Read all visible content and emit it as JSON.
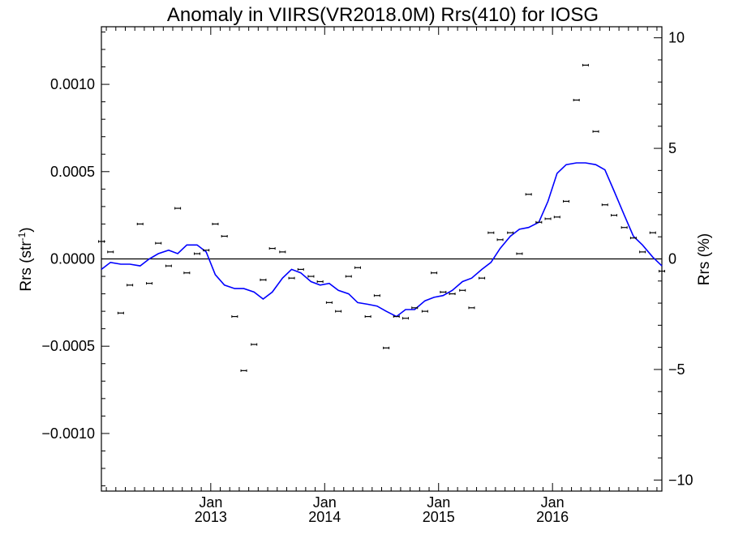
{
  "chart_data": {
    "type": "scatter",
    "title": "Anomaly in VIIRS(VR2018.0M) Rrs(410) for IOSG",
    "ylabel_left": "Rrs (str",
    "ylabel_left_sup": "-1",
    "ylabel_left_end": ")",
    "ylabel_right": "Rrs (%)",
    "x_ticks": [
      {
        "x": 2013.0,
        "month": "Jan",
        "year": "2013"
      },
      {
        "x": 2014.0,
        "month": "Jan",
        "year": "2014"
      },
      {
        "x": 2015.0,
        "month": "Jan",
        "year": "2015"
      },
      {
        "x": 2016.0,
        "month": "Jan",
        "year": "2016"
      }
    ],
    "xlim": [
      2012.04,
      2016.96
    ],
    "ylim_left": [
      -0.00133,
      0.00133
    ],
    "ylim_right": [
      -10.5,
      10.5
    ],
    "y_ticks_left": [
      {
        "v": 0.001,
        "label": "0.0010"
      },
      {
        "v": 0.0005,
        "label": "0.0005"
      },
      {
        "v": 0.0,
        "label": "0.0000"
      },
      {
        "v": -0.0005,
        "label": "−0.0005"
      },
      {
        "v": -0.001,
        "label": "−0.0010"
      }
    ],
    "y_ticks_right": [
      {
        "v": 10,
        "label": "10"
      },
      {
        "v": 5,
        "label": "5"
      },
      {
        "v": 0,
        "label": "0"
      },
      {
        "v": -5,
        "label": "−5"
      },
      {
        "v": -10,
        "label": "−10"
      }
    ],
    "series": [
      {
        "kind": "points",
        "color": "#000000",
        "points": [
          {
            "x": 2012.04,
            "y": 0.0001
          },
          {
            "x": 2012.12,
            "y": 4e-05
          },
          {
            "x": 2012.21,
            "y": -0.00031
          },
          {
            "x": 2012.29,
            "y": -0.00015
          },
          {
            "x": 2012.38,
            "y": 0.0002
          },
          {
            "x": 2012.46,
            "y": -0.00014
          },
          {
            "x": 2012.54,
            "y": 9e-05
          },
          {
            "x": 2012.63,
            "y": -4e-05
          },
          {
            "x": 2012.71,
            "y": 0.00029
          },
          {
            "x": 2012.79,
            "y": -8e-05
          },
          {
            "x": 2012.88,
            "y": 3e-05
          },
          {
            "x": 2012.96,
            "y": 5e-05
          },
          {
            "x": 2013.04,
            "y": 0.0002
          },
          {
            "x": 2013.12,
            "y": 0.00013
          },
          {
            "x": 2013.21,
            "y": -0.00033
          },
          {
            "x": 2013.29,
            "y": -0.00064
          },
          {
            "x": 2013.38,
            "y": -0.00049
          },
          {
            "x": 2013.46,
            "y": -0.00012
          },
          {
            "x": 2013.54,
            "y": 6e-05
          },
          {
            "x": 2013.63,
            "y": 4e-05
          },
          {
            "x": 2013.71,
            "y": -0.00011
          },
          {
            "x": 2013.79,
            "y": -6e-05
          },
          {
            "x": 2013.88,
            "y": -0.0001
          },
          {
            "x": 2013.96,
            "y": -0.00013
          },
          {
            "x": 2014.04,
            "y": -0.00025
          },
          {
            "x": 2014.12,
            "y": -0.0003
          },
          {
            "x": 2014.21,
            "y": -0.0001
          },
          {
            "x": 2014.29,
            "y": -5e-05
          },
          {
            "x": 2014.38,
            "y": -0.00033
          },
          {
            "x": 2014.46,
            "y": -0.00021
          },
          {
            "x": 2014.54,
            "y": -0.00051
          },
          {
            "x": 2014.63,
            "y": -0.00033
          },
          {
            "x": 2014.71,
            "y": -0.00034
          },
          {
            "x": 2014.79,
            "y": -0.00028
          },
          {
            "x": 2014.88,
            "y": -0.0003
          },
          {
            "x": 2014.96,
            "y": -8e-05
          },
          {
            "x": 2015.04,
            "y": -0.00019
          },
          {
            "x": 2015.12,
            "y": -0.0002
          },
          {
            "x": 2015.21,
            "y": -0.00018
          },
          {
            "x": 2015.29,
            "y": -0.00028
          },
          {
            "x": 2015.38,
            "y": -0.00011
          },
          {
            "x": 2015.46,
            "y": 0.00015
          },
          {
            "x": 2015.54,
            "y": 0.00011
          },
          {
            "x": 2015.63,
            "y": 0.00015
          },
          {
            "x": 2015.71,
            "y": 3e-05
          },
          {
            "x": 2015.79,
            "y": 0.00037
          },
          {
            "x": 2015.88,
            "y": 0.00021
          },
          {
            "x": 2015.96,
            "y": 0.00023
          },
          {
            "x": 2016.04,
            "y": 0.00024
          },
          {
            "x": 2016.12,
            "y": 0.00033
          },
          {
            "x": 2016.21,
            "y": 0.00091
          },
          {
            "x": 2016.29,
            "y": 0.00111
          },
          {
            "x": 2016.38,
            "y": 0.00073
          },
          {
            "x": 2016.46,
            "y": 0.00031
          },
          {
            "x": 2016.54,
            "y": 0.00025
          },
          {
            "x": 2016.63,
            "y": 0.00018
          },
          {
            "x": 2016.71,
            "y": 0.00012
          },
          {
            "x": 2016.79,
            "y": 4e-05
          },
          {
            "x": 2016.88,
            "y": 0.00015
          },
          {
            "x": 2016.96,
            "y": -7e-05
          }
        ]
      },
      {
        "kind": "line",
        "color": "#0000ff",
        "points": [
          {
            "x": 2012.04,
            "y": -6e-05
          },
          {
            "x": 2012.12,
            "y": -2e-05
          },
          {
            "x": 2012.21,
            "y": -3e-05
          },
          {
            "x": 2012.29,
            "y": -3e-05
          },
          {
            "x": 2012.38,
            "y": -4e-05
          },
          {
            "x": 2012.46,
            "y": 0.0
          },
          {
            "x": 2012.54,
            "y": 3e-05
          },
          {
            "x": 2012.63,
            "y": 5e-05
          },
          {
            "x": 2012.71,
            "y": 3e-05
          },
          {
            "x": 2012.79,
            "y": 8e-05
          },
          {
            "x": 2012.88,
            "y": 8e-05
          },
          {
            "x": 2012.96,
            "y": 4e-05
          },
          {
            "x": 2013.04,
            "y": -9e-05
          },
          {
            "x": 2013.12,
            "y": -0.00015
          },
          {
            "x": 2013.21,
            "y": -0.00017
          },
          {
            "x": 2013.29,
            "y": -0.00017
          },
          {
            "x": 2013.38,
            "y": -0.00019
          },
          {
            "x": 2013.46,
            "y": -0.00023
          },
          {
            "x": 2013.54,
            "y": -0.00019
          },
          {
            "x": 2013.63,
            "y": -0.00011
          },
          {
            "x": 2013.71,
            "y": -6e-05
          },
          {
            "x": 2013.79,
            "y": -8e-05
          },
          {
            "x": 2013.88,
            "y": -0.00013
          },
          {
            "x": 2013.96,
            "y": -0.00015
          },
          {
            "x": 2014.04,
            "y": -0.00014
          },
          {
            "x": 2014.12,
            "y": -0.00018
          },
          {
            "x": 2014.21,
            "y": -0.0002
          },
          {
            "x": 2014.29,
            "y": -0.00025
          },
          {
            "x": 2014.38,
            "y": -0.00026
          },
          {
            "x": 2014.46,
            "y": -0.00027
          },
          {
            "x": 2014.54,
            "y": -0.0003
          },
          {
            "x": 2014.63,
            "y": -0.00033
          },
          {
            "x": 2014.71,
            "y": -0.00029
          },
          {
            "x": 2014.79,
            "y": -0.00029
          },
          {
            "x": 2014.88,
            "y": -0.00024
          },
          {
            "x": 2014.96,
            "y": -0.00022
          },
          {
            "x": 2015.04,
            "y": -0.00021
          },
          {
            "x": 2015.12,
            "y": -0.00018
          },
          {
            "x": 2015.21,
            "y": -0.00013
          },
          {
            "x": 2015.29,
            "y": -0.00011
          },
          {
            "x": 2015.38,
            "y": -6e-05
          },
          {
            "x": 2015.46,
            "y": -2e-05
          },
          {
            "x": 2015.54,
            "y": 6e-05
          },
          {
            "x": 2015.63,
            "y": 0.00013
          },
          {
            "x": 2015.71,
            "y": 0.00017
          },
          {
            "x": 2015.79,
            "y": 0.00018
          },
          {
            "x": 2015.88,
            "y": 0.00021
          },
          {
            "x": 2015.96,
            "y": 0.00033
          },
          {
            "x": 2016.04,
            "y": 0.00049
          },
          {
            "x": 2016.12,
            "y": 0.00054
          },
          {
            "x": 2016.21,
            "y": 0.00055
          },
          {
            "x": 2016.29,
            "y": 0.00055
          },
          {
            "x": 2016.38,
            "y": 0.00054
          },
          {
            "x": 2016.46,
            "y": 0.00051
          },
          {
            "x": 2016.54,
            "y": 0.00039
          },
          {
            "x": 2016.63,
            "y": 0.00025
          },
          {
            "x": 2016.71,
            "y": 0.00013
          },
          {
            "x": 2016.79,
            "y": 8e-05
          },
          {
            "x": 2016.88,
            "y": 1e-05
          },
          {
            "x": 2016.96,
            "y": -4e-05
          }
        ]
      }
    ]
  }
}
